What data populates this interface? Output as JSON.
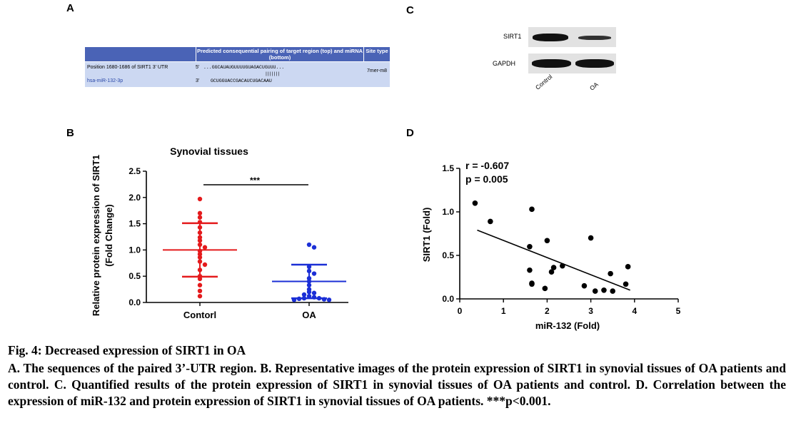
{
  "panel_labels": {
    "a": "A",
    "b": "B",
    "c": "C",
    "d": "D"
  },
  "panel_a": {
    "header_col1": "Predicted consequential pairing of target region (top) and miRNA (bottom)",
    "header_col2": "Site type",
    "row1_label": "Position 1680-1686 of SIRT1 3' UTR",
    "row1_prime": "5'",
    "row1_seq": "...GGCAUAUGUUUUGUAGACUGUUU...",
    "pairing_bars": "|||||||",
    "row2_label": "hsa-miR-132-3p",
    "row2_prime": "3'",
    "row2_seq": "GCUGGUACCGACAUCUGACAAU",
    "site_type": "7mer-m8"
  },
  "panel_c": {
    "bands": [
      "SIRT1",
      "GAPDH"
    ],
    "lanes": [
      "Control",
      "OA"
    ]
  },
  "panel_b": {
    "title": "Synovial tissues",
    "ylabel_line1": "Relative protein expression of SIRT1",
    "ylabel_line2": "(Fold Change)",
    "categories": [
      "Contorl",
      "OA"
    ],
    "significance": "***",
    "yticks": [
      "0.0",
      "0.5",
      "1.0",
      "1.5",
      "2.0",
      "2.5"
    ]
  },
  "panel_d": {
    "r_text": "r = -0.607",
    "p_text": "p = 0.005",
    "xlabel": "miR-132 (Fold)",
    "ylabel": "SIRT1 (Fold)",
    "xticks": [
      "0",
      "1",
      "2",
      "3",
      "4",
      "5"
    ],
    "yticks": [
      "0.0",
      "0.5",
      "1.0",
      "1.5"
    ]
  },
  "caption": {
    "title": "Fig. 4: Decreased expression of SIRT1 in OA",
    "body": "A. The sequences of the paired 3’-UTR region. B. Representative images of the protein expression of SIRT1 in synovial tissues of OA patients and control. C. Quantified results of the protein expression of SIRT1 in synovial tissues of OA patients and control. D. Correlation between the expression of miR-132 and protein expression of SIRT1 in synovial tissues of OA patients. ***p<0.001."
  },
  "chart_data": [
    {
      "type": "scatter",
      "title": "Synovial tissues",
      "ylabel": "Relative protein expression of SIRT1 (Fold Change)",
      "categories": [
        "Contorl",
        "OA"
      ],
      "ylim": [
        0,
        2.5
      ],
      "color": {
        "Contorl": "#e41a1c",
        "OA": "#1b2fd6"
      },
      "series": [
        {
          "name": "Contorl",
          "mean": 1.0,
          "sd": 0.51,
          "values": [
            1.97,
            1.7,
            1.62,
            1.53,
            1.43,
            1.33,
            1.24,
            1.18,
            1.1,
            1.05,
            0.98,
            0.92,
            0.86,
            0.78,
            0.72,
            0.62,
            0.5,
            0.45,
            0.33,
            0.22,
            0.12
          ]
        },
        {
          "name": "OA",
          "mean": 0.4,
          "sd": 0.32,
          "values": [
            1.1,
            1.05,
            0.68,
            0.6,
            0.55,
            0.46,
            0.4,
            0.33,
            0.25,
            0.2,
            0.18,
            0.15,
            0.12,
            0.1,
            0.08,
            0.08,
            0.07,
            0.06,
            0.05,
            0.05
          ]
        }
      ],
      "grid": false
    },
    {
      "type": "scatter",
      "xlabel": "miR-132 (Fold)",
      "ylabel": "SIRT1 (Fold)",
      "xlim": [
        0,
        5
      ],
      "ylim": [
        0,
        1.5
      ],
      "points": [
        [
          0.35,
          1.1
        ],
        [
          0.7,
          0.89
        ],
        [
          1.65,
          1.03
        ],
        [
          1.6,
          0.6
        ],
        [
          2.0,
          0.67
        ],
        [
          3.0,
          0.7
        ],
        [
          1.6,
          0.33
        ],
        [
          1.65,
          0.18
        ],
        [
          1.65,
          0.17
        ],
        [
          1.95,
          0.12
        ],
        [
          2.1,
          0.31
        ],
        [
          2.15,
          0.36
        ],
        [
          2.35,
          0.38
        ],
        [
          2.85,
          0.15
        ],
        [
          3.1,
          0.09
        ],
        [
          3.3,
          0.1
        ],
        [
          3.45,
          0.29
        ],
        [
          3.5,
          0.09
        ],
        [
          3.8,
          0.17
        ],
        [
          3.85,
          0.37
        ]
      ],
      "fit": {
        "x": [
          0.4,
          3.9
        ],
        "y": [
          0.79,
          0.1
        ]
      },
      "annotations": [
        "r = -0.607",
        "p = 0.005"
      ],
      "grid": false
    }
  ]
}
